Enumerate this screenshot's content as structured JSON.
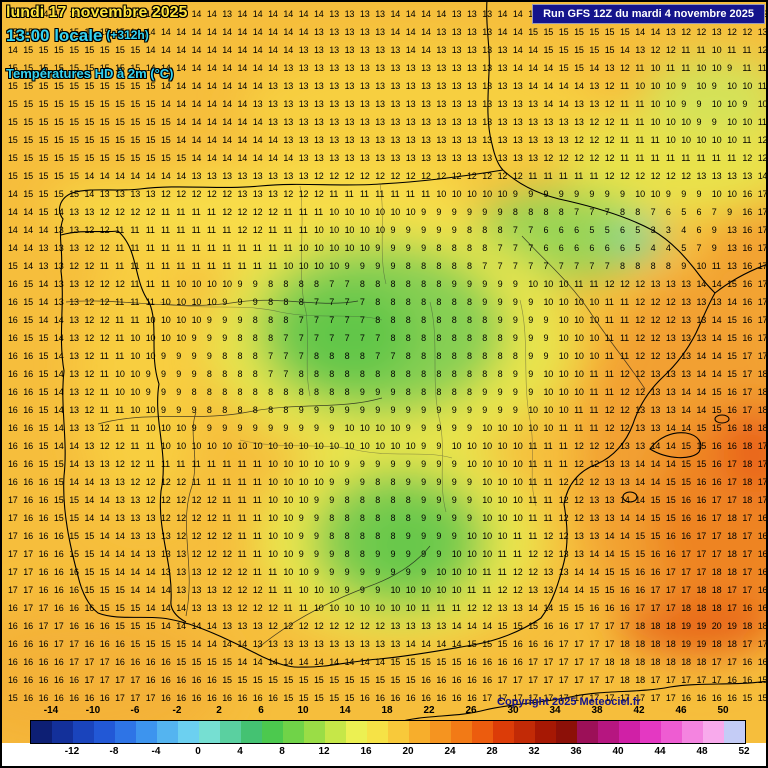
{
  "header": {
    "date_line": "lundi 17 novembre 2025",
    "time_line": "13:00 locale",
    "time_offset": "(+312h)",
    "variable_line": "Températures HD à 2m (°C)"
  },
  "run_box": {
    "text": "Run GFS 12Z du mardi 4 novembre 2025"
  },
  "footer": {
    "copyright": "Copyright 2025 Meteociel.fr"
  },
  "colors": {
    "date_text": "#ffe43c",
    "cyan_text": "#35d3f2",
    "run_box_bg": "#14148c",
    "map_base": "#f6be3c"
  },
  "map_grid": {
    "rows": [
      "15 14 14 15 15 15 15 15 14 14 14 14 14 14 13 14 14 14 14 14 14 13 13 13 13 14 14 14 14 13 13 13 14 14 15 15 15 15 15 14 15 15 15 14 13 12 12 13 13 12",
      "15 15 14 14 15 15 15 15 14 14 14 14 14 14 14 14 14 14 14 14 13 13 13 13 13 14 14 14 13 13 13 13 14 14 15 15 15 15 15 15 15 14 14 13 12 12 13 12 12 13",
      "14 15 15 15 15 15 15 15 15 14 14 14 14 14 14 14 14 14 14 13 13 13 13 13 13 13 14 14 13 13 13 13 13 14 14 15 15 15 15 15 14 13 12 12 11 11 10 11 11 12",
      "15 15 15 15 15 15 15 15 15 14 14 14 14 14 14 14 14 14 13 13 13 13 13 13 13 13 13 13 13 13 13 13 13 14 14 14 15 15 14 13 12 11 10 11 11 10 10 9 11 11",
      "15 15 15 15 15 15 15 15 15 15 14 14 14 14 14 14 14 13 13 13 13 13 13 13 13 13 13 13 13 13 13 13 13 13 14 14 14 14 13 12 11 10 10 10 9 10 9 10 10 11",
      "15 15 15 15 15 15 15 15 15 15 14 14 14 14 14 14 13 13 13 13 13 13 13 13 13 13 13 13 13 13 13 13 13 13 13 14 14 13 13 12 11 11 10 10 9 9 10 10 9 10",
      "15 15 15 15 15 15 15 15 15 15 15 14 14 14 14 14 14 13 13 13 13 13 13 13 13 13 13 13 13 13 13 13 13 13 13 13 13 13 12 12 11 11 10 10 10 9 9 10 10 11",
      "15 15 15 15 15 15 15 15 15 15 15 14 14 14 14 14 14 14 13 13 13 13 13 13 13 13 13 13 13 13 13 13 13 13 13 13 13 12 12 12 11 11 11 10 10 10 10 10 11 12",
      "15 15 15 15 15 15 15 15 15 15 15 15 14 14 14 14 14 14 14 13 13 13 13 13 13 13 13 13 13 13 13 13 13 13 13 12 12 12 12 12 11 11 11 11 11 11 11 11 12 12",
      "15 15 15 15 15 14 14 14 14 14 14 14 13 13 13 13 13 13 13 13 12 12 12 12 12 12 12 12 12 12 12 12 12 12 11 11 11 11 11 12 12 12 12 12 12 13 13 13 13 14",
      "14 15 15 15 15 14 13 13 13 13 12 12 12 12 12 13 13 13 12 12 12 11 11 11 11 11 11 11 10 10 10 10 10 9 9 9 9 9 9 9 9 10 10 9 9 9 10 10 16 17",
      "14 14 15 14 13 13 12 12 12 12 11 11 11 11 12 12 12 12 11 11 11 10 10 10 10 10 10 9 9 9 9 9 9 8 8 8 8 7 7 7 8 8 7 6 5 6 7 9 16 17",
      "14 14 14 13 13 12 12 11 11 11 11 11 11 11 11 12 12 11 11 11 10 10 10 10 10 9 9 9 9 9 8 8 8 7 7 6 6 6 5 5 6 5 3 3 4 6 9 13 16 17",
      "14 14 13 13 13 12 12 11 11 11 11 11 11 11 11 11 11 11 11 10 10 10 10 10 9 9 9 9 8 8 8 8 7 7 7 6 6 6 6 6 6 5 4 4 5 7 9 13 16 17",
      "15 14 13 13 12 12 11 11 11 11 11 11 11 11 11 11 11 11 10 10 10 10 9 9 9 9 8 8 8 8 8 7 7 7 7 7 7 7 7 7 8 8 8 8 9 10 11 13 16 17",
      "16 15 14 13 13 12 12 12 11 11 11 10 10 10 10 9 9 8 8 8 8 7 7 8 8 8 8 8 8 9 9 9 9 9 10 10 10 11 11 12 12 12 13 13 13 14 14 15 16 17",
      "16 15 14 13 13 12 12 11 11 11 10 10 10 10 9 9 9 8 8 8 7 7 7 7 8 8 8 8 8 8 8 9 9 9 9 10 10 10 10 11 11 12 12 12 13 13 13 14 16 17",
      "16 15 14 14 13 12 12 11 11 10 10 10 10 9 9 9 8 8 8 7 7 7 7 7 8 8 8 8 8 8 8 8 9 9 9 9 10 10 10 11 11 12 12 12 13 13 14 15 16 17",
      "16 15 15 14 13 12 12 11 10 10 10 10 9 9 9 8 8 8 7 7 7 7 7 7 7 8 8 8 8 8 8 8 8 9 9 9 10 10 10 11 11 12 12 13 13 13 14 15 16 17",
      "16 16 15 14 13 12 11 11 10 10 9 9 9 9 8 8 8 7 7 7 8 8 8 8 7 7 8 8 8 8 8 8 8 8 9 9 10 10 10 11 11 12 12 13 13 14 14 15 17 17",
      "16 16 15 14 13 12 11 10 10 9 9 9 9 8 8 8 8 7 7 8 8 8 8 8 8 8 8 8 8 8 8 8 8 9 9 10 10 10 11 11 12 12 13 13 13 14 14 15 17 18",
      "16 16 15 14 13 12 11 10 10 9 9 9 8 8 8 8 8 8 8 8 8 8 8 9 9 9 8 8 8 8 8 9 9 9 9 10 10 10 11 11 12 12 13 13 14 14 15 16 17 18",
      "16 16 15 14 13 12 11 11 10 10 9 9 9 8 8 8 8 8 8 9 9 9 9 9 9 9 9 9 9 9 9 9 9 9 10 10 10 11 11 12 12 13 13 13 14 14 15 16 17 18",
      "16 16 15 14 13 13 12 11 11 10 10 10 9 9 9 9 9 9 9 9 9 9 10 10 10 10 9 9 9 9 9 10 10 10 10 10 11 11 11 12 12 13 13 14 14 15 15 16 18 18",
      "16 16 15 14 14 13 12 12 11 11 10 10 10 10 10 10 10 10 10 10 10 10 10 10 10 10 10 9 9 10 10 10 10 10 11 11 11 12 12 12 13 13 14 14 15 15 16 16 18 17",
      "16 16 15 15 14 13 13 12 12 11 11 11 11 11 11 11 11 10 10 10 10 10 9 9 9 9 9 9 9 9 10 10 10 10 11 11 11 12 12 13 13 14 14 14 15 15 16 17 18 17",
      "16 16 16 15 14 14 13 13 12 12 12 12 11 11 11 11 11 10 10 10 10 9 9 9 8 8 9 9 9 9 9 10 10 10 11 11 12 12 12 13 13 14 14 15 15 16 16 17 18 17",
      "17 16 16 15 15 14 14 13 13 12 12 12 12 12 11 11 11 10 10 10 9 9 8 8 8 8 8 9 9 9 9 10 10 10 11 11 12 12 13 13 14 14 15 15 16 16 17 17 18 17",
      "17 16 16 15 15 14 14 13 13 13 12 12 12 12 11 11 11 10 10 9 9 8 8 8 8 8 8 9 9 9 9 10 10 10 11 11 12 12 13 13 14 14 15 15 16 16 17 18 17 16",
      "17 16 16 16 15 15 14 14 13 13 13 12 12 12 12 11 11 10 10 9 9 8 8 8 8 8 9 9 9 9 10 10 10 11 11 12 12 13 13 14 14 15 15 16 16 17 17 18 17 16",
      "17 17 16 16 15 15 14 14 14 13 13 13 12 12 12 11 11 10 10 9 9 9 8 8 9 9 9 9 9 10 10 10 11 11 12 12 13 13 14 14 15 15 16 16 17 17 17 18 17 16",
      "17 17 16 16 16 15 15 14 14 14 13 13 13 12 12 12 11 11 10 10 9 9 9 9 9 9 9 9 10 10 10 11 11 12 12 13 13 14 14 15 15 16 16 17 17 17 18 18 17 16",
      "17 17 16 16 16 15 15 15 14 14 14 13 13 13 12 12 12 11 11 10 10 10 9 9 9 10 10 10 10 10 11 11 12 12 13 13 14 14 15 15 16 16 17 17 17 18 18 17 17 16",
      "16 17 17 16 16 16 15 15 15 14 14 14 13 13 13 12 12 12 11 11 10 10 10 10 10 10 10 11 11 11 12 12 13 13 14 14 15 15 16 16 16 17 17 17 18 18 18 17 16 16",
      "16 16 17 17 16 16 16 15 15 15 14 14 14 14 13 13 13 12 12 12 12 12 12 12 12 13 13 13 13 14 14 14 15 15 15 16 16 17 17 17 17 18 18 18 19 19 20 19 18 18",
      "16 16 16 17 17 16 16 16 15 15 15 15 14 14 14 14 13 13 13 13 13 13 13 13 13 13 14 14 14 14 15 15 15 16 16 16 17 17 17 17 18 18 18 18 19 19 18 18 17 17",
      "16 16 16 16 17 17 17 16 16 16 16 15 15 15 15 14 14 14 14 14 14 14 14 14 14 15 15 15 15 15 16 16 16 16 17 17 17 17 17 18 18 18 18 18 18 18 17 17 16 16",
      "16 16 16 16 16 17 17 17 17 16 16 16 16 16 15 15 15 15 15 15 15 15 15 15 15 15 15 16 16 16 16 16 17 17 17 17 17 17 17 17 18 18 17 17 17 17 17 16 16 15",
      "15 16 16 16 16 16 16 17 17 17 16 16 16 16 16 16 16 16 15 15 15 15 15 16 16 16 16 16 16 16 16 17 17 17 17 17 17 17 17 17 17 17 17 17 16 16 16 16 15 15"
    ]
  },
  "scale": {
    "cells": [
      "#0d1f74",
      "#13309a",
      "#1a44bc",
      "#2258d6",
      "#2e74e6",
      "#3d94ee",
      "#54b4f0",
      "#6cd0f0",
      "#76dfd2",
      "#5ad0a0",
      "#44c272",
      "#4cc94e",
      "#70d348",
      "#9add46",
      "#c6e748",
      "#ecf052",
      "#f6e246",
      "#f8c93a",
      "#f7ae2c",
      "#f59420",
      "#f27a16",
      "#ec5c0e",
      "#dc3c08",
      "#c22a06",
      "#a61804",
      "#8c1008",
      "#9c1058",
      "#b61680",
      "#d020a6",
      "#e438c2",
      "#ee5cd2",
      "#f484e0",
      "#f8aaec",
      "#c4ccf6"
    ],
    "tick_top": [
      "-14",
      "-10",
      "-6",
      "-2",
      "2",
      "6",
      "10",
      "14",
      "18",
      "22",
      "26",
      "30",
      "34",
      "38",
      "42",
      "46",
      "50"
    ],
    "tick_bottom": [
      "-12",
      "-8",
      "-4",
      "0",
      "4",
      "8",
      "12",
      "16",
      "20",
      "24",
      "28",
      "32",
      "36",
      "40",
      "44",
      "48",
      "52"
    ]
  }
}
